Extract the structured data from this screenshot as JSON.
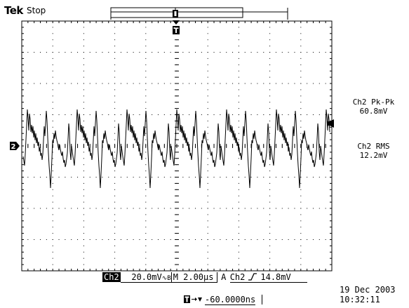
{
  "header": {
    "brand": "Tek",
    "acq_state": "Stop"
  },
  "measurements": [
    {
      "label": "Ch2 Pk-Pk",
      "value": "60.8mV"
    },
    {
      "label": "Ch2 RMS",
      "value": "12.2mV"
    }
  ],
  "channel_marker": "2",
  "status_bar": {
    "channel": "Ch2",
    "volts_per_div": "20.0mV",
    "bandwidth_symbol": "∿B",
    "timebase": "M 2.00µs",
    "trigger_mode": "A",
    "trigger_source": "Ch2",
    "trigger_slope_icon": "rising-edge-icon",
    "trigger_level": "14.8mV"
  },
  "trigger_position": {
    "icon": "trigger-position-icon",
    "value": "-60.0000ns"
  },
  "date": "19 Dec  2003",
  "time": "10:32:11",
  "colors": {
    "background": "#ffffff",
    "trace": "#000000",
    "grid_dots": "#000000"
  }
}
